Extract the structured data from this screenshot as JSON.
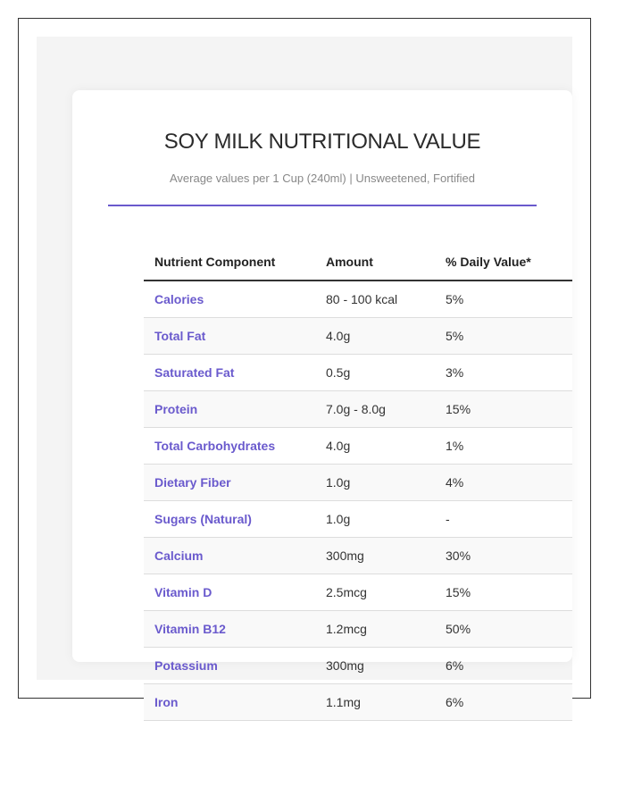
{
  "title": "SOY MILK NUTRITIONAL VALUE",
  "subtitle": "Average values per 1 Cup (240ml) | Unsweetened, Fortified",
  "colors": {
    "accent": "#6a5acd",
    "text": "#333333",
    "muted": "#888888"
  },
  "table": {
    "headers": [
      "Nutrient Component",
      "Amount",
      "% Daily Value*"
    ],
    "rows": [
      {
        "name": "Calories",
        "amount": "80 - 100 kcal",
        "dv": "5%"
      },
      {
        "name": "Total Fat",
        "amount": "4.0g",
        "dv": "5%"
      },
      {
        "name": "Saturated Fat",
        "amount": "0.5g",
        "dv": "3%"
      },
      {
        "name": "Protein",
        "amount": "7.0g - 8.0g",
        "dv": "15%"
      },
      {
        "name": "Total Carbohydrates",
        "amount": "4.0g",
        "dv": "1%"
      },
      {
        "name": "Dietary Fiber",
        "amount": "1.0g",
        "dv": "4%"
      },
      {
        "name": "Sugars (Natural)",
        "amount": "1.0g",
        "dv": "-"
      },
      {
        "name": "Calcium",
        "amount": "300mg",
        "dv": "30%"
      },
      {
        "name": "Vitamin D",
        "amount": "2.5mcg",
        "dv": "15%"
      },
      {
        "name": "Vitamin B12",
        "amount": "1.2mcg",
        "dv": "50%"
      },
      {
        "name": "Potassium",
        "amount": "300mg",
        "dv": "6%"
      },
      {
        "name": "Iron",
        "amount": "1.1mg",
        "dv": "6%"
      }
    ]
  }
}
